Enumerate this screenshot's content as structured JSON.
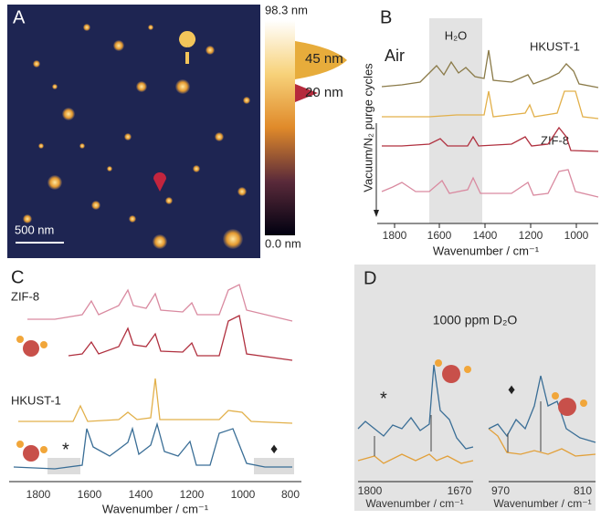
{
  "panel_a": {
    "label": "A",
    "colorbar_max": "98.3 nm",
    "colorbar_min": "0.0 nm",
    "marker_high": "45 nm",
    "marker_low": "20 nm",
    "scale_bar": "500 nm"
  },
  "panel_b": {
    "label": "B",
    "annotation": "Air",
    "band_label": "H₂O",
    "trace_top": "HKUST-1",
    "trace_bottom": "ZIF-8",
    "y_label": "Vacuum/N₂ purge cycles",
    "x_ticks": [
      "1800",
      "1600",
      "1400",
      "1200",
      "1000"
    ],
    "x_label": "Wavenumber / cm⁻¹"
  },
  "panel_c": {
    "label": "C",
    "trace_top": "ZIF-8",
    "trace_mid": "HKUST-1",
    "asterisk": "*",
    "diamond": "♦",
    "x_ticks": [
      "1800",
      "1600",
      "1400",
      "1200",
      "1000",
      "800"
    ],
    "x_label": "Wavenumber / cm⁻¹"
  },
  "panel_d": {
    "label": "D",
    "title": "1000 ppm D₂O",
    "asterisk": "*",
    "diamond": "♦",
    "left_ticks": [
      "1800",
      "1670"
    ],
    "right_ticks": [
      "970",
      "810"
    ],
    "left_x_label": "Wavenumber / cm⁻¹",
    "right_x_label": "Wavenumber / cm⁻¹"
  }
}
